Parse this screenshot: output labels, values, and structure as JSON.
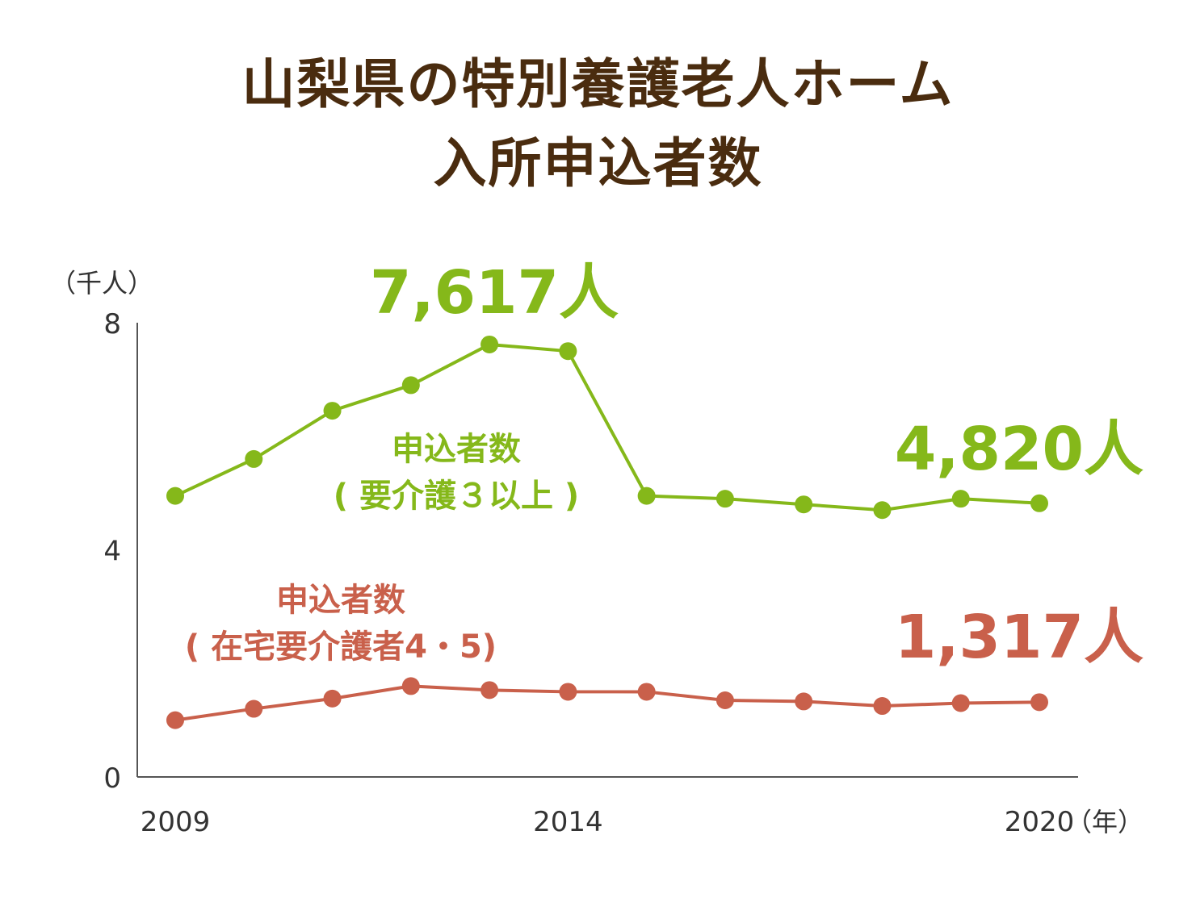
{
  "title": {
    "line1": "山梨県の特別養護老人ホーム",
    "line2": "入所申込者数"
  },
  "colors": {
    "title": "#4a2c0f",
    "green": "#85b81a",
    "red": "#c9604b",
    "axis": "#555555"
  },
  "chart_data": {
    "type": "line",
    "title": "山梨県の特別養護老人ホーム 入所申込者数",
    "ylabel": "（千人）",
    "xlabel": "（年）",
    "ylim": [
      0,
      8
    ],
    "yticks": [
      "0",
      "4",
      "8"
    ],
    "x": [
      2009,
      2010,
      2011,
      2012,
      2013,
      2014,
      2015,
      2016,
      2017,
      2018,
      2019,
      2020
    ],
    "xtick_labels": [
      {
        "x": 2009,
        "label": "2009"
      },
      {
        "x": 2014,
        "label": "2014"
      },
      {
        "x": 2020,
        "label": "2020"
      }
    ],
    "series": [
      {
        "name": "申込者数（要介護３以上）",
        "label_line1": "申込者数",
        "label_line2": "( 要介護３以上 )",
        "color": "#85b81a",
        "values": [
          4.95,
          5.6,
          6.45,
          6.9,
          7.617,
          7.5,
          4.95,
          4.9,
          4.8,
          4.7,
          4.9,
          4.82
        ]
      },
      {
        "name": "申込者数（在宅要介護者4・5）",
        "label_line1": "申込者数",
        "label_line2": "( 在宅要介護者4・5)",
        "color": "#c9604b",
        "values": [
          1.0,
          1.2,
          1.38,
          1.6,
          1.53,
          1.5,
          1.5,
          1.35,
          1.33,
          1.25,
          1.3,
          1.317
        ]
      }
    ],
    "annotations": [
      {
        "text": "7,617人",
        "color": "#85b81a"
      },
      {
        "text": "4,820人",
        "color": "#85b81a"
      },
      {
        "text": "1,317人",
        "color": "#c9604b"
      }
    ]
  }
}
